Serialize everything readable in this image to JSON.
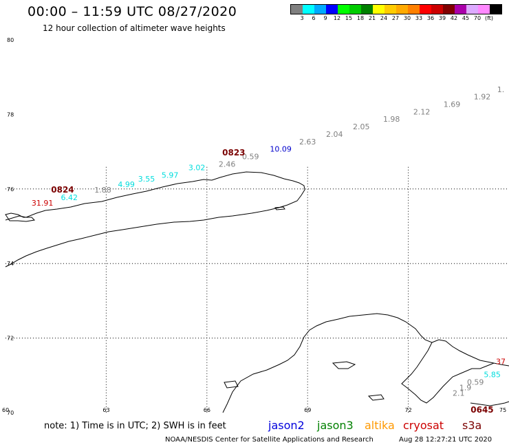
{
  "header": {
    "title": "00:00 – 11:59 UTC 08/27/2020",
    "subtitle": "12 hour collection of altimeter wave heights"
  },
  "colorbar": {
    "colors": [
      "#808080",
      "#00ffff",
      "#00aaff",
      "#0000ff",
      "#00ff00",
      "#00cc00",
      "#008000",
      "#ffff00",
      "#ffcc00",
      "#ffaa00",
      "#ff8000",
      "#ff0000",
      "#cc0000",
      "#800000",
      "#aa00aa",
      "#ddaaff",
      "#ff88ff",
      "#000000"
    ],
    "labels": [
      "3",
      "6",
      "9",
      "12",
      "15",
      "18",
      "21",
      "24",
      "27",
      "30",
      "33",
      "36",
      "39",
      "42",
      "45",
      "70",
      "(ft)"
    ]
  },
  "map": {
    "lat_labels": [
      {
        "text": "80",
        "lat": 80
      },
      {
        "text": "78",
        "lat": 78
      },
      {
        "text": "76",
        "lat": 76
      },
      {
        "text": "74",
        "lat": 74
      },
      {
        "text": "72",
        "lat": 72
      },
      {
        "text": "70",
        "lat": 70
      }
    ],
    "lon_labels": [
      {
        "text": "60",
        "lon": 60
      },
      {
        "text": "63",
        "lon": 63
      },
      {
        "text": "66",
        "lon": 66
      },
      {
        "text": "69",
        "lon": 69
      },
      {
        "text": "72",
        "lon": 72
      },
      {
        "text": "75",
        "lon": 75
      }
    ],
    "track_times": [
      {
        "text": "0823",
        "lon": 66.8,
        "lat": 76.9
      },
      {
        "text": "0824",
        "lon": 61.7,
        "lat": 75.9
      },
      {
        "text": "0645",
        "lon": 74.2,
        "lat": 70.0
      }
    ],
    "observations": [
      {
        "text": "1.",
        "lon": 75.0,
        "lat": 78.6,
        "color": "#808080"
      },
      {
        "text": "1.92",
        "lon": 74.2,
        "lat": 78.4,
        "color": "#808080"
      },
      {
        "text": "1.69",
        "lon": 73.3,
        "lat": 78.2,
        "color": "#808080"
      },
      {
        "text": "2.12",
        "lon": 72.4,
        "lat": 78.0,
        "color": "#808080"
      },
      {
        "text": "1.98",
        "lon": 71.5,
        "lat": 77.8,
        "color": "#808080"
      },
      {
        "text": "2.05",
        "lon": 70.6,
        "lat": 77.6,
        "color": "#808080"
      },
      {
        "text": "2.04",
        "lon": 69.8,
        "lat": 77.4,
        "color": "#808080"
      },
      {
        "text": "2.63",
        "lon": 69.0,
        "lat": 77.2,
        "color": "#808080"
      },
      {
        "text": "10.09",
        "lon": 68.2,
        "lat": 77.0,
        "color": "#0000cc"
      },
      {
        "text": "0.59",
        "lon": 67.3,
        "lat": 76.8,
        "color": "#808080"
      },
      {
        "text": "2.46",
        "lon": 66.6,
        "lat": 76.6,
        "color": "#808080"
      },
      {
        "text": "3.02",
        "lon": 65.7,
        "lat": 76.5,
        "color": "#00dddd"
      },
      {
        "text": "5.97",
        "lon": 64.9,
        "lat": 76.3,
        "color": "#00dddd"
      },
      {
        "text": "3.55",
        "lon": 64.2,
        "lat": 76.2,
        "color": "#00dddd"
      },
      {
        "text": "4.99",
        "lon": 63.6,
        "lat": 76.05,
        "color": "#00dddd"
      },
      {
        "text": "1.88",
        "lon": 62.9,
        "lat": 75.9,
        "color": "#808080"
      },
      {
        "text": "6.42",
        "lon": 61.9,
        "lat": 75.7,
        "color": "#00dddd"
      },
      {
        "text": "31.91",
        "lon": 61.1,
        "lat": 75.55,
        "color": "#cc0000"
      },
      {
        "text": "37",
        "lon": 75.0,
        "lat": 71.3,
        "color": "#cc0000"
      },
      {
        "text": "5.85",
        "lon": 74.5,
        "lat": 70.95,
        "color": "#00dddd"
      },
      {
        "text": "0.59",
        "lon": 74.0,
        "lat": 70.75,
        "color": "#808080"
      },
      {
        "text": "1.9",
        "lon": 73.7,
        "lat": 70.6,
        "color": "#808080"
      },
      {
        "text": "2.1",
        "lon": 73.5,
        "lat": 70.45,
        "color": "#808080"
      }
    ]
  },
  "footer": {
    "note": "note: 1) Time is in UTC; 2) SWH is in feet",
    "legend": [
      {
        "name": "jason2",
        "color": "#0000dd"
      },
      {
        "name": "jason3",
        "color": "#008000"
      },
      {
        "name": "altika",
        "color": "#ff9900"
      },
      {
        "name": "cryosat",
        "color": "#cc0000"
      },
      {
        "name": "s3a",
        "color": "#7b0000"
      }
    ],
    "credit": "NOAA/NESDIS Center for Satellite Applications and Research",
    "timestamp": "Aug 28 12:27:21 UTC 2020"
  }
}
